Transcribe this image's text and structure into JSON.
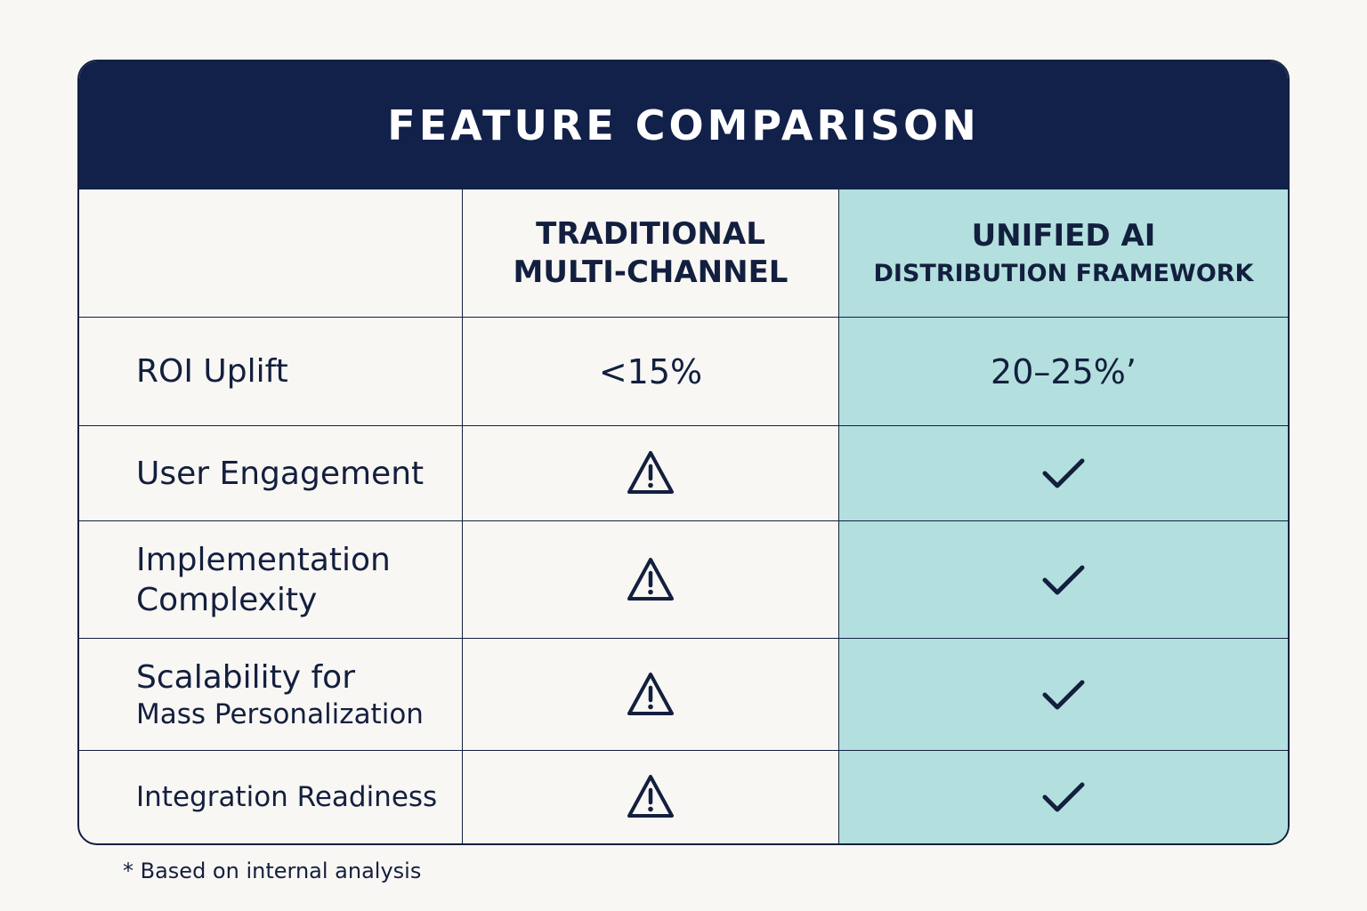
{
  "title": "FEATURE COMPARISON",
  "columns": {
    "traditional": {
      "line1": "TRADITIONAL",
      "line2": "MULTI-CHANNEL"
    },
    "unified": {
      "line1": "UNIFIED AI",
      "line2": "DISTRIBUTION FRAMEWORK"
    }
  },
  "rows": [
    {
      "label_line1": "ROI Uplift",
      "label_line2": "",
      "traditional": "<15%",
      "unified": "20–25%’"
    },
    {
      "label_line1": "User Engagement",
      "label_line2": "",
      "traditional_icon": "warning-icon",
      "unified_icon": "check-icon"
    },
    {
      "label_line1": "Implementation",
      "label_line2": "Complexity",
      "traditional_icon": "warning-icon",
      "unified_icon": "check-icon"
    },
    {
      "label_line1": "Scalability for",
      "label_line2": "Mass Personalization",
      "traditional_icon": "warning-icon",
      "unified_icon": "check-icon"
    },
    {
      "label_line1": "Integration Readiness",
      "label_line2": "",
      "traditional_icon": "warning-icon",
      "unified_icon": "check-icon"
    }
  ],
  "footnote": "* Based on internal analysis",
  "colors": {
    "header_bg": "#12214a",
    "highlight_bg": "#b3e0de",
    "text": "#131f3e",
    "page_bg": "#f8f7f4"
  }
}
